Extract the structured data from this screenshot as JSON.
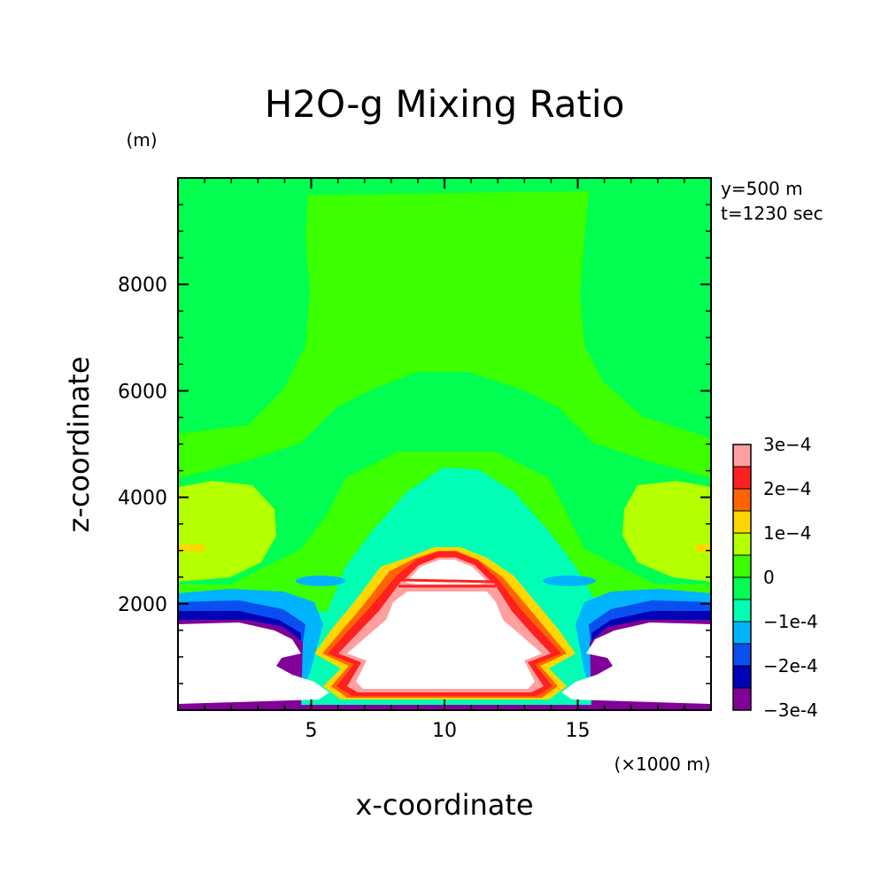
{
  "chart_data": {
    "type": "heatmap",
    "title": "H2O-g Mixing Ratio",
    "xlabel": "x-coordinate",
    "ylabel": "z-coordinate",
    "x_unit": "(×1000 m)",
    "y_unit": "(m)",
    "annotations": [
      "y=500 m",
      "t=1230 sec"
    ],
    "xlim": [
      0,
      20
    ],
    "ylim": [
      0,
      10000
    ],
    "x_ticks": [
      5,
      10,
      15
    ],
    "x_tick_labels": [
      "5",
      "10",
      "15"
    ],
    "y_ticks": [
      2000,
      4000,
      6000,
      8000
    ],
    "y_tick_labels": [
      "2000",
      "4000",
      "6000",
      "8000"
    ],
    "colorbar": {
      "levels": [
        -0.0003,
        -0.00025,
        -0.0002,
        -0.00015,
        -0.0001,
        -5e-05,
        0,
        5e-05,
        0.0001,
        0.00015,
        0.0002,
        0.00025,
        0.0003
      ],
      "labels": [
        "-3e-4",
        "-2e-4",
        "-1e-4",
        "0",
        "1e-4",
        "2e-4",
        "3e-4"
      ],
      "label_values": [
        -0.0003,
        -0.0002,
        -0.0001,
        0,
        0.0001,
        0.0002,
        0.0003
      ],
      "colors": [
        "#800099",
        "#0000b4",
        "#0a50f0",
        "#00b4ff",
        "#00ffb4",
        "#00ff50",
        "#3cff00",
        "#b4ff00",
        "#ffd700",
        "#ff6400",
        "#ff2020",
        "#ffa0a0"
      ]
    },
    "undefined_region_color": "#ffffff"
  }
}
